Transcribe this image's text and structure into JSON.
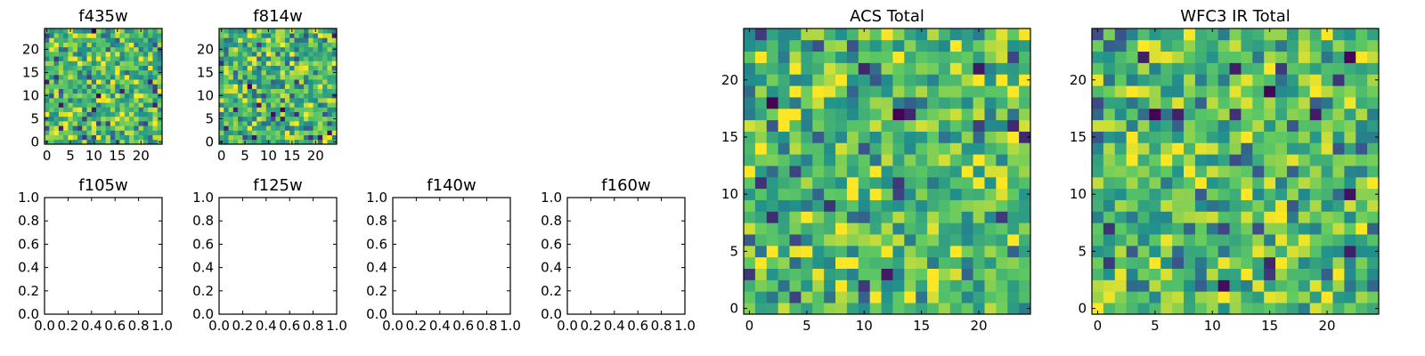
{
  "chart_data": [
    {
      "type": "heatmap",
      "title": "f435w",
      "grid_size": 25,
      "xlim": [
        0,
        24
      ],
      "ylim": [
        0,
        24
      ],
      "xticks": [
        "0",
        "5",
        "10",
        "15",
        "20"
      ],
      "yticks": [
        "0",
        "5",
        "10",
        "15",
        "20"
      ],
      "colormap": "viridis",
      "values_note": "25x25 random-valued pixel map; individual cell values not legible"
    },
    {
      "type": "heatmap",
      "title": "f814w",
      "grid_size": 25,
      "xlim": [
        0,
        24
      ],
      "ylim": [
        0,
        24
      ],
      "xticks": [
        "0",
        "5",
        "10",
        "15",
        "20"
      ],
      "yticks": [
        "0",
        "5",
        "10",
        "15",
        "20"
      ],
      "colormap": "viridis",
      "values_note": "25x25 random-valued pixel map; individual cell values not legible"
    },
    {
      "type": "scatter",
      "title": "f105w",
      "xlim": [
        0.0,
        1.0
      ],
      "ylim": [
        0.0,
        1.0
      ],
      "xticks": [
        "0.0",
        "0.2",
        "0.4",
        "0.6",
        "0.8",
        "1.0"
      ],
      "yticks": [
        "0.0",
        "0.2",
        "0.4",
        "0.6",
        "0.8",
        "1.0"
      ],
      "series": []
    },
    {
      "type": "scatter",
      "title": "f125w",
      "xlim": [
        0.0,
        1.0
      ],
      "ylim": [
        0.0,
        1.0
      ],
      "xticks": [
        "0.0",
        "0.2",
        "0.4",
        "0.6",
        "0.8",
        "1.0"
      ],
      "yticks": [
        "0.0",
        "0.2",
        "0.4",
        "0.6",
        "0.8",
        "1.0"
      ],
      "series": []
    },
    {
      "type": "scatter",
      "title": "f140w",
      "xlim": [
        0.0,
        1.0
      ],
      "ylim": [
        0.0,
        1.0
      ],
      "xticks": [
        "0.0",
        "0.2",
        "0.4",
        "0.6",
        "0.8",
        "1.0"
      ],
      "yticks": [
        "0.0",
        "0.2",
        "0.4",
        "0.6",
        "0.8",
        "1.0"
      ],
      "series": []
    },
    {
      "type": "scatter",
      "title": "f160w",
      "xlim": [
        0.0,
        1.0
      ],
      "ylim": [
        0.0,
        1.0
      ],
      "xticks": [
        "0.0",
        "0.2",
        "0.4",
        "0.6",
        "0.8",
        "1.0"
      ],
      "yticks": [
        "0.0",
        "0.2",
        "0.4",
        "0.6",
        "0.8",
        "1.0"
      ],
      "series": []
    },
    {
      "type": "heatmap",
      "title": "ACS Total",
      "grid_size": 25,
      "xlim": [
        0,
        24
      ],
      "ylim": [
        0,
        24
      ],
      "xticks": [
        "0",
        "5",
        "10",
        "15",
        "20"
      ],
      "yticks": [
        "0",
        "5",
        "10",
        "15",
        "20"
      ],
      "colormap": "viridis",
      "values_note": "25x25 random-valued pixel map; individual cell values not legible"
    },
    {
      "type": "heatmap",
      "title": "WFC3 IR Total",
      "grid_size": 25,
      "xlim": [
        0,
        24
      ],
      "ylim": [
        0,
        24
      ],
      "xticks": [
        "0",
        "5",
        "10",
        "15",
        "20"
      ],
      "yticks": [
        "0",
        "5",
        "10",
        "15",
        "20"
      ],
      "colormap": "viridis",
      "values_note": "25x25 random-valued pixel map; individual cell values not legible"
    }
  ],
  "colors": {
    "viridis": [
      "#440154",
      "#3b528b",
      "#21918c",
      "#5ec962",
      "#fde725"
    ],
    "frame": "#000000",
    "background": "#ffffff"
  }
}
